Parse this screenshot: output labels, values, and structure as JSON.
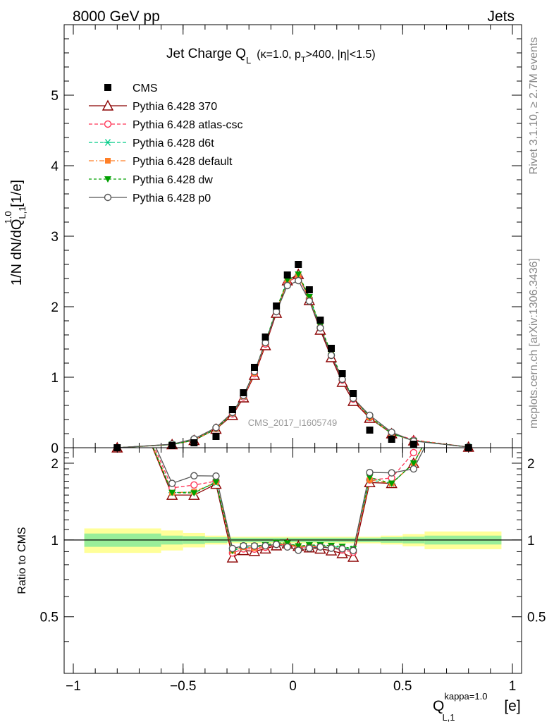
{
  "header": {
    "beam": "8000 GeV pp",
    "category": "Jets",
    "side_rivet": "Rivet 3.1.10, ≥ 2.7M events",
    "side_mcplots": "mcplots.cern.ch [arXiv:1306.3436]",
    "watermark": "CMS_2017_I1605749"
  },
  "chart_data": {
    "type": "scatter",
    "title_main": "Jet Charge Q",
    "title_sub": "L",
    "title_cond_a": "(κ=1.0, p",
    "title_cond_sub": "T",
    "title_cond_b": ">400, |η|<1.5)",
    "ylabel_a": "1/N dN/dQ",
    "ylabel_sup": "1.0",
    "ylabel_sub": "L,1",
    "ylabel_b": " [1/e]",
    "ratio_ylabel": "Ratio to CMS",
    "xlabel_main": "Q",
    "xlabel_sup": "kappa=1.0",
    "xlabel_sub": "L,1",
    "xlabel_unit": " [e]",
    "xlim": [
      -1,
      1
    ],
    "ylim": [
      0,
      6
    ],
    "ratio_ylim": [
      0.3,
      2.3
    ],
    "x_ticks": [
      "−1",
      "−0.5",
      "0",
      "0.5",
      "1"
    ],
    "x_tick_values": [
      -1,
      -0.5,
      0,
      0.5,
      1
    ],
    "y_ticks": [
      "0",
      "1",
      "2",
      "3",
      "4",
      "5"
    ],
    "y_tick_values": [
      0,
      1,
      2,
      3,
      4,
      5
    ],
    "ratio_y_ticks": [
      "0.5",
      "1",
      "2"
    ],
    "ratio_y_tick_values": [
      0.5,
      1,
      2
    ],
    "x": [
      -0.8,
      -0.55,
      -0.45,
      -0.35,
      -0.275,
      -0.225,
      -0.175,
      -0.125,
      -0.075,
      -0.025,
      0.025,
      0.075,
      0.125,
      0.175,
      0.225,
      0.275,
      0.35,
      0.45,
      0.55,
      0.8
    ],
    "data": {
      "name": "CMS",
      "values": [
        0.0,
        0.03,
        0.07,
        0.16,
        0.54,
        0.78,
        1.14,
        1.57,
        2.01,
        2.45,
        2.6,
        2.24,
        1.81,
        1.41,
        1.05,
        0.77,
        0.25,
        0.12,
        0.05,
        0.0
      ],
      "band_edges": [
        -0.95,
        -0.6,
        -0.5,
        -0.4,
        -0.3,
        0.3,
        0.4,
        0.5,
        0.6,
        0.95
      ],
      "band_stat": [
        0.06,
        0.04,
        0.035,
        0.025,
        0.02,
        0.02,
        0.025,
        0.03,
        0.04
      ],
      "band_total": [
        0.11,
        0.09,
        0.065,
        0.04,
        0.03,
        0.03,
        0.04,
        0.055,
        0.08
      ]
    },
    "series": [
      {
        "name": "Pythia 6.428 370",
        "color": "#8b0000",
        "marker": "triangle-open",
        "dash": "",
        "values": [
          0.0,
          0.045,
          0.105,
          0.265,
          0.46,
          0.71,
          1.03,
          1.45,
          1.91,
          2.37,
          2.46,
          2.09,
          1.67,
          1.28,
          0.93,
          0.66,
          0.42,
          0.2,
          0.1,
          0.01
        ]
      },
      {
        "name": "Pythia 6.428 atlas-csc",
        "color": "#ff3355",
        "marker": "circle-open",
        "dash": "5,3",
        "values": [
          0.0,
          0.048,
          0.115,
          0.272,
          0.48,
          0.72,
          1.05,
          1.47,
          1.93,
          2.35,
          2.43,
          2.11,
          1.7,
          1.31,
          0.96,
          0.69,
          0.43,
          0.21,
          0.11,
          0.01
        ]
      },
      {
        "name": "Pythia 6.428 d6t",
        "color": "#00cc88",
        "marker": "asterisk",
        "dash": "5,3",
        "values": [
          0.0,
          0.046,
          0.108,
          0.268,
          0.49,
          0.73,
          1.07,
          1.49,
          1.95,
          2.37,
          2.45,
          2.13,
          1.72,
          1.33,
          0.98,
          0.71,
          0.43,
          0.2,
          0.1,
          0.01
        ]
      },
      {
        "name": "Pythia 6.428 default",
        "color": "#ff7f27",
        "marker": "square",
        "dash": "7,3,2,3",
        "values": [
          0.0,
          0.046,
          0.108,
          0.27,
          0.49,
          0.73,
          1.06,
          1.48,
          1.94,
          2.36,
          2.44,
          2.12,
          1.71,
          1.32,
          0.97,
          0.7,
          0.43,
          0.2,
          0.1,
          0.01
        ]
      },
      {
        "name": "Pythia 6.428 dw",
        "color": "#00a000",
        "marker": "triangle-down",
        "dash": "4,3",
        "values": [
          0.0,
          0.046,
          0.107,
          0.27,
          0.49,
          0.74,
          1.08,
          1.5,
          1.96,
          2.38,
          2.46,
          2.14,
          1.73,
          1.34,
          0.99,
          0.71,
          0.44,
          0.2,
          0.1,
          0.01
        ]
      },
      {
        "name": "Pythia 6.428 p0",
        "color": "#555555",
        "marker": "circle-open",
        "dash": "",
        "values": [
          0.0,
          0.05,
          0.125,
          0.285,
          0.5,
          0.74,
          1.08,
          1.49,
          1.93,
          2.3,
          2.37,
          2.08,
          1.7,
          1.31,
          0.97,
          0.7,
          0.46,
          0.22,
          0.095,
          0.01
        ]
      }
    ]
  }
}
